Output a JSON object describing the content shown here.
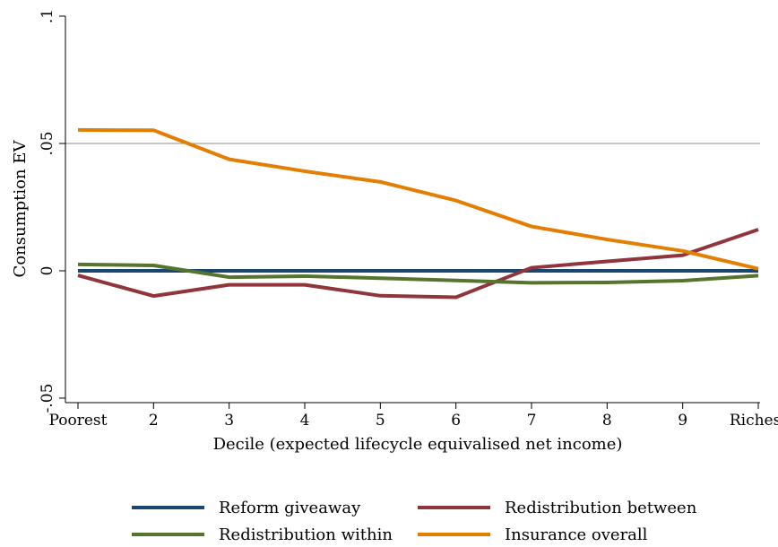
{
  "chart_data": {
    "type": "line",
    "title": "",
    "xlabel": "Decile (expected lifecycle equivalised net income)",
    "ylabel": "Consumption EV",
    "categories": [
      "Poorest",
      "2",
      "3",
      "4",
      "5",
      "6",
      "7",
      "8",
      "9",
      "Richest"
    ],
    "yticks": [
      {
        "value": -0.05,
        "label": "-.05"
      },
      {
        "value": 0,
        "label": "0"
      },
      {
        "value": 0.05,
        "label": ".05"
      },
      {
        "value": 0.1,
        "label": ".1"
      }
    ],
    "ylim": [
      -0.056,
      0.1
    ],
    "reference_line": 0.05,
    "legend_position": "bottom",
    "series": [
      {
        "name": "Reform giveaway",
        "color": "#1a476f",
        "values": [
          0,
          0,
          0,
          0,
          0,
          0,
          0,
          0,
          0,
          0
        ]
      },
      {
        "name": "Redistribution between",
        "color": "#90353b",
        "values": [
          -0.0018,
          -0.0099,
          -0.0055,
          -0.0055,
          -0.0098,
          -0.0104,
          0.0012,
          0.0037,
          0.0061,
          0.0162
        ]
      },
      {
        "name": "Redistribution within",
        "color": "#55752f",
        "values": [
          0.0025,
          0.0021,
          -0.0025,
          -0.0021,
          -0.0029,
          -0.0038,
          -0.0047,
          -0.0046,
          -0.0039,
          -0.0019
        ]
      },
      {
        "name": "Insurance overall",
        "color": "#e37e00",
        "values": [
          0.0553,
          0.0552,
          0.0438,
          0.0391,
          0.0349,
          0.0276,
          0.0174,
          0.0123,
          0.0078,
          0.0008
        ]
      }
    ]
  }
}
